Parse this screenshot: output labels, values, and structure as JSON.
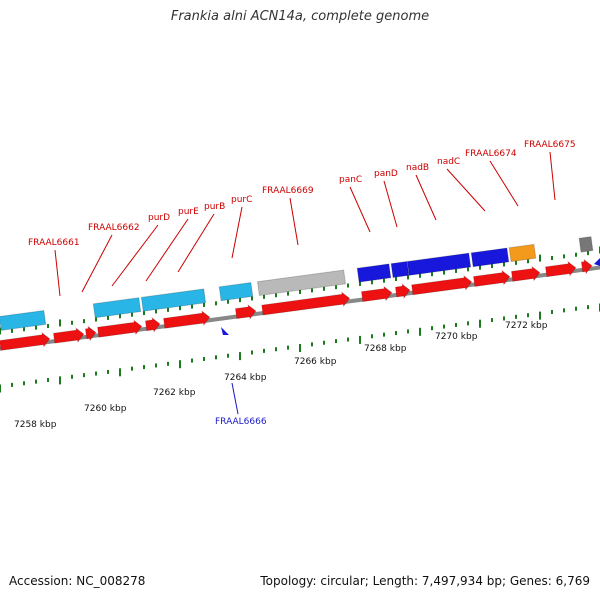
{
  "title": "Frankia alni ACN14a, complete genome",
  "footer": {
    "accession": "Accession: NC_008278",
    "summary": "Topology: circular; Length: 7,497,934 bp; Genes: 6,769"
  },
  "colors": {
    "cds": "#ee1111",
    "orf": "#29b6e6",
    "gene_blue": "#1818dd",
    "gray": "#b9b9b9",
    "orange": "#f39a1d",
    "darkgray": "#777777",
    "ticks": "#1b7a1b",
    "label_red": "#cc0000",
    "label_blue": "#1a1ac8",
    "backbone": "#888888"
  },
  "axis_labels": [
    "7258 kbp",
    "7260 kbp",
    "7262 kbp",
    "7264 kbp",
    "7266 kbp",
    "7268 kbp",
    "7270 kbp",
    "7272 kbp"
  ],
  "gene_labels": [
    {
      "text": "FRAAL6661",
      "color": "label_red"
    },
    {
      "text": "FRAAL6662",
      "color": "label_red"
    },
    {
      "text": "purD",
      "color": "label_red"
    },
    {
      "text": "purE",
      "color": "label_red"
    },
    {
      "text": "purB",
      "color": "label_red"
    },
    {
      "text": "purC",
      "color": "label_red"
    },
    {
      "text": "FRAAL6669",
      "color": "label_red"
    },
    {
      "text": "panC",
      "color": "label_red"
    },
    {
      "text": "panD",
      "color": "label_red"
    },
    {
      "text": "nadB",
      "color": "label_red"
    },
    {
      "text": "nadC",
      "color": "label_red"
    },
    {
      "text": "FRAAL6674",
      "color": "label_red"
    },
    {
      "text": "FRAAL6675",
      "color": "label_red"
    },
    {
      "text": "FRAAL6666",
      "color": "label_blue"
    }
  ],
  "features": [
    {
      "track": "orf",
      "color": "orf"
    },
    {
      "track": "orf",
      "color": "orf"
    },
    {
      "track": "orf",
      "color": "orf"
    },
    {
      "track": "orf",
      "color": "orf"
    },
    {
      "track": "orf",
      "color": "orf"
    },
    {
      "track": "orf",
      "color": "gray"
    },
    {
      "track": "orf",
      "color": "gene_blue"
    },
    {
      "track": "orf",
      "color": "gene_blue"
    },
    {
      "track": "orf",
      "color": "gene_blue"
    },
    {
      "track": "orf",
      "color": "gene_blue"
    },
    {
      "track": "orf",
      "color": "orange"
    },
    {
      "track": "orf",
      "color": "darkgray"
    },
    {
      "track": "cds",
      "color": "cds"
    }
  ]
}
